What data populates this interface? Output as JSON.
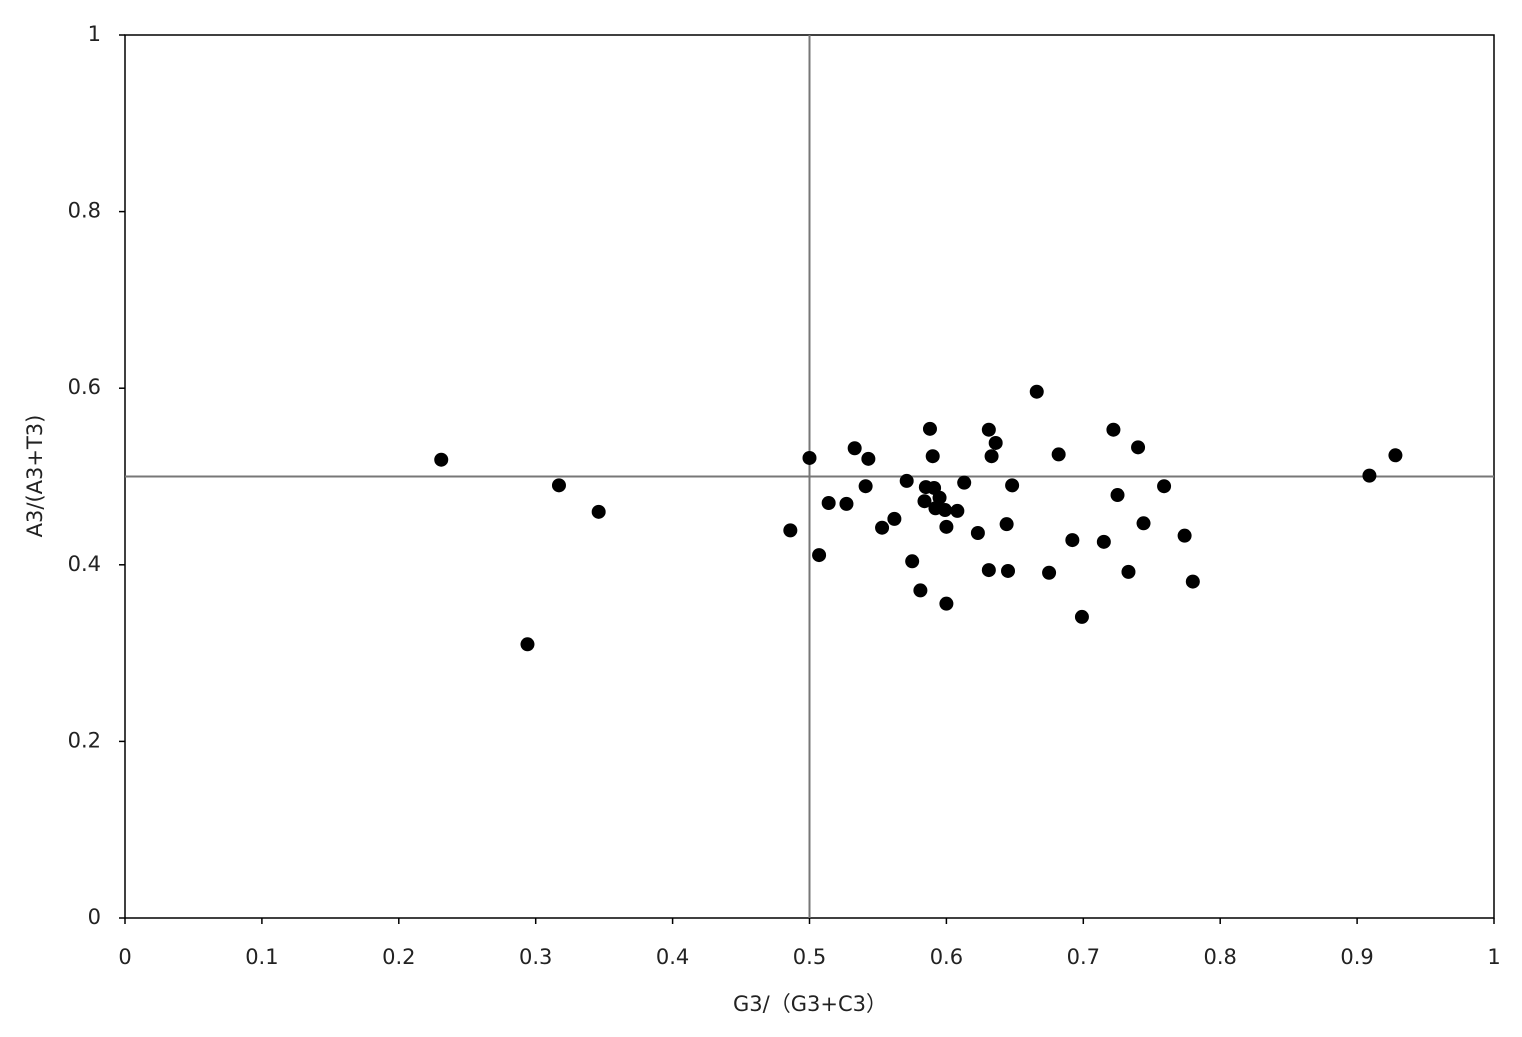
{
  "chart_data": {
    "type": "scatter",
    "x_label": "G3/（G3+C3）",
    "y_label": "A3/(A3+T3)",
    "color": "#000000",
    "xlim": [
      0,
      1
    ],
    "ylim": [
      0,
      1
    ],
    "xticks": [
      0,
      0.1,
      0.2,
      0.3,
      0.4,
      0.5,
      0.6,
      0.7,
      0.8,
      0.9,
      1
    ],
    "yticks": [
      0,
      0.2,
      0.4,
      0.6,
      0.8,
      1
    ],
    "vlines": [
      0.5
    ],
    "hlines": [
      0.5
    ],
    "x": [
      0.231,
      0.294,
      0.317,
      0.346,
      0.486,
      0.5,
      0.507,
      0.514,
      0.527,
      0.533,
      0.543,
      0.541,
      0.553,
      0.562,
      0.571,
      0.575,
      0.581,
      0.588,
      0.59,
      0.585,
      0.591,
      0.584,
      0.595,
      0.592,
      0.599,
      0.6,
      0.6,
      0.608,
      0.613,
      0.623,
      0.631,
      0.633,
      0.636,
      0.631,
      0.644,
      0.645,
      0.648,
      0.666,
      0.675,
      0.682,
      0.692,
      0.699,
      0.715,
      0.722,
      0.725,
      0.733,
      0.74,
      0.744,
      0.759,
      0.774,
      0.78,
      0.909,
      0.928
    ],
    "values": [
      0.519,
      0.31,
      0.49,
      0.46,
      0.439,
      0.521,
      0.411,
      0.47,
      0.469,
      0.532,
      0.52,
      0.489,
      0.442,
      0.452,
      0.495,
      0.404,
      0.371,
      0.554,
      0.523,
      0.488,
      0.487,
      0.472,
      0.476,
      0.464,
      0.462,
      0.443,
      0.356,
      0.461,
      0.493,
      0.436,
      0.553,
      0.523,
      0.538,
      0.394,
      0.446,
      0.393,
      0.49,
      0.596,
      0.391,
      0.525,
      0.428,
      0.341,
      0.426,
      0.553,
      0.479,
      0.392,
      0.533,
      0.447,
      0.489,
      0.433,
      0.381,
      0.501,
      0.524
    ]
  }
}
